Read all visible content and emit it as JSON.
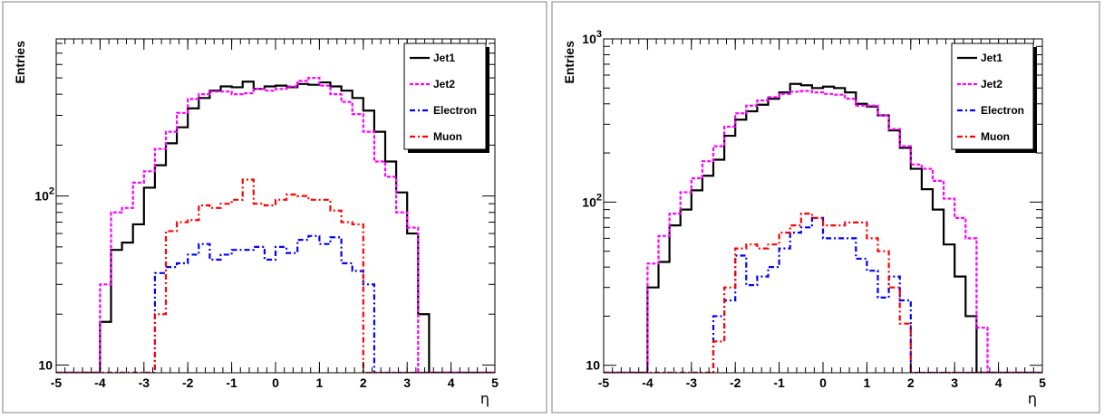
{
  "colors": {
    "jet1": "#000000",
    "jet2": "#ff00ff",
    "electron": "#0000ff",
    "muon": "#ff0000",
    "pad_border": "#aaaaaa"
  },
  "chart_data": [
    {
      "type": "histogram",
      "log_y": true,
      "xlabel": "η",
      "ylabel": "Entries",
      "xlim": [
        -5,
        5
      ],
      "ylim": [
        9,
        850
      ],
      "x_ticks": [
        -5,
        -4,
        -3,
        -2,
        -1,
        0,
        1,
        2,
        3,
        4,
        5
      ],
      "x_tick_labels": [
        "-5",
        "-4",
        "-3",
        "-2",
        "-1",
        "0",
        "1",
        "2",
        "3",
        "4",
        "5"
      ],
      "y_tick_labels": [
        {
          "value": 10,
          "base": "10",
          "exp": ""
        },
        {
          "value": 100,
          "base": "10",
          "exp": "2"
        }
      ],
      "bin_width": 0.25,
      "legend": {
        "position": "top-right",
        "entries": [
          "Jet1",
          "Jet2",
          "Electron",
          "Muon"
        ]
      },
      "series": [
        {
          "name": "Jet1",
          "color": "#000000",
          "style": "solid",
          "values": [
            9,
            9,
            9,
            9,
            18,
            48,
            53,
            68,
            112,
            152,
            205,
            255,
            330,
            380,
            420,
            445,
            440,
            475,
            430,
            445,
            450,
            440,
            460,
            455,
            470,
            445,
            420,
            380,
            320,
            240,
            160,
            105,
            60,
            20,
            9,
            9,
            9,
            9,
            9,
            9
          ]
        },
        {
          "name": "Jet2",
          "color": "#ff00ff",
          "style": "dashed",
          "values": [
            9,
            9,
            9,
            9,
            30,
            80,
            85,
            120,
            140,
            190,
            240,
            310,
            375,
            400,
            415,
            415,
            400,
            405,
            430,
            420,
            430,
            445,
            480,
            500,
            450,
            400,
            360,
            305,
            240,
            160,
            130,
            80,
            65,
            9,
            9,
            9,
            9,
            9,
            9,
            9
          ]
        },
        {
          "name": "Electron",
          "color": "#0000ff",
          "style": "dashdot",
          "values": [
            9,
            9,
            9,
            9,
            9,
            9,
            9,
            9,
            9,
            35,
            38,
            40,
            45,
            52,
            42,
            45,
            48,
            48,
            50,
            42,
            50,
            46,
            55,
            58,
            52,
            57,
            40,
            36,
            30,
            9,
            9,
            9,
            9,
            9,
            9,
            9,
            9,
            9,
            9,
            9
          ]
        },
        {
          "name": "Muon",
          "color": "#ff0000",
          "style": "dashdot",
          "values": [
            9,
            9,
            9,
            9,
            9,
            9,
            9,
            9,
            9,
            20,
            62,
            70,
            72,
            88,
            85,
            90,
            95,
            125,
            90,
            88,
            95,
            102,
            100,
            95,
            95,
            82,
            70,
            68,
            9,
            9,
            9,
            9,
            9,
            9,
            9,
            9,
            9,
            9,
            9,
            9
          ]
        }
      ]
    },
    {
      "type": "histogram",
      "log_y": true,
      "xlabel": "η",
      "ylabel": "Entries",
      "xlim": [
        -5,
        5
      ],
      "ylim": [
        9,
        1000
      ],
      "x_ticks": [
        -5,
        -4,
        -3,
        -2,
        -1,
        0,
        1,
        2,
        3,
        4,
        5
      ],
      "x_tick_labels": [
        "-5",
        "-4",
        "-3",
        "-2",
        "-1",
        "0",
        "1",
        "2",
        "3",
        "4",
        "5"
      ],
      "y_tick_labels": [
        {
          "value": 10,
          "base": "10",
          "exp": ""
        },
        {
          "value": 100,
          "base": "10",
          "exp": "2"
        },
        {
          "value": 1000,
          "base": "10",
          "exp": "3"
        }
      ],
      "bin_width": 0.25,
      "legend": {
        "position": "top-right",
        "entries": [
          "Jet1",
          "Jet2",
          "Electron",
          "Muon"
        ]
      },
      "series": [
        {
          "name": "Jet1",
          "color": "#000000",
          "style": "solid",
          "values": [
            9,
            9,
            9,
            9,
            30,
            43,
            72,
            90,
            118,
            145,
            182,
            255,
            320,
            360,
            395,
            430,
            470,
            530,
            520,
            500,
            510,
            500,
            470,
            400,
            385,
            340,
            275,
            215,
            160,
            120,
            90,
            55,
            35,
            20,
            9,
            9,
            9,
            9,
            9,
            9
          ]
        },
        {
          "name": "Jet2",
          "color": "#ff00ff",
          "style": "dashed",
          "values": [
            9,
            9,
            9,
            9,
            42,
            62,
            85,
            115,
            140,
            178,
            220,
            290,
            350,
            390,
            420,
            440,
            460,
            475,
            480,
            470,
            460,
            455,
            430,
            390,
            390,
            340,
            280,
            220,
            170,
            160,
            135,
            105,
            80,
            60,
            17,
            9,
            9,
            9,
            9,
            9
          ]
        },
        {
          "name": "Electron",
          "color": "#0000ff",
          "style": "dashdot",
          "values": [
            9,
            9,
            9,
            9,
            9,
            9,
            9,
            9,
            9,
            9,
            20,
            25,
            47,
            31,
            35,
            40,
            52,
            65,
            70,
            80,
            60,
            60,
            60,
            45,
            38,
            26,
            35,
            25,
            9,
            9,
            9,
            9,
            9,
            9,
            9,
            9,
            9,
            9,
            9,
            9
          ]
        },
        {
          "name": "Muon",
          "color": "#ff0000",
          "style": "dashdot",
          "values": [
            9,
            9,
            9,
            9,
            9,
            9,
            9,
            9,
            9,
            9,
            14,
            30,
            52,
            55,
            52,
            55,
            65,
            72,
            85,
            80,
            72,
            72,
            75,
            75,
            60,
            50,
            30,
            18,
            9,
            9,
            9,
            9,
            9,
            9,
            9,
            9,
            9,
            9,
            9,
            9
          ]
        }
      ]
    }
  ]
}
